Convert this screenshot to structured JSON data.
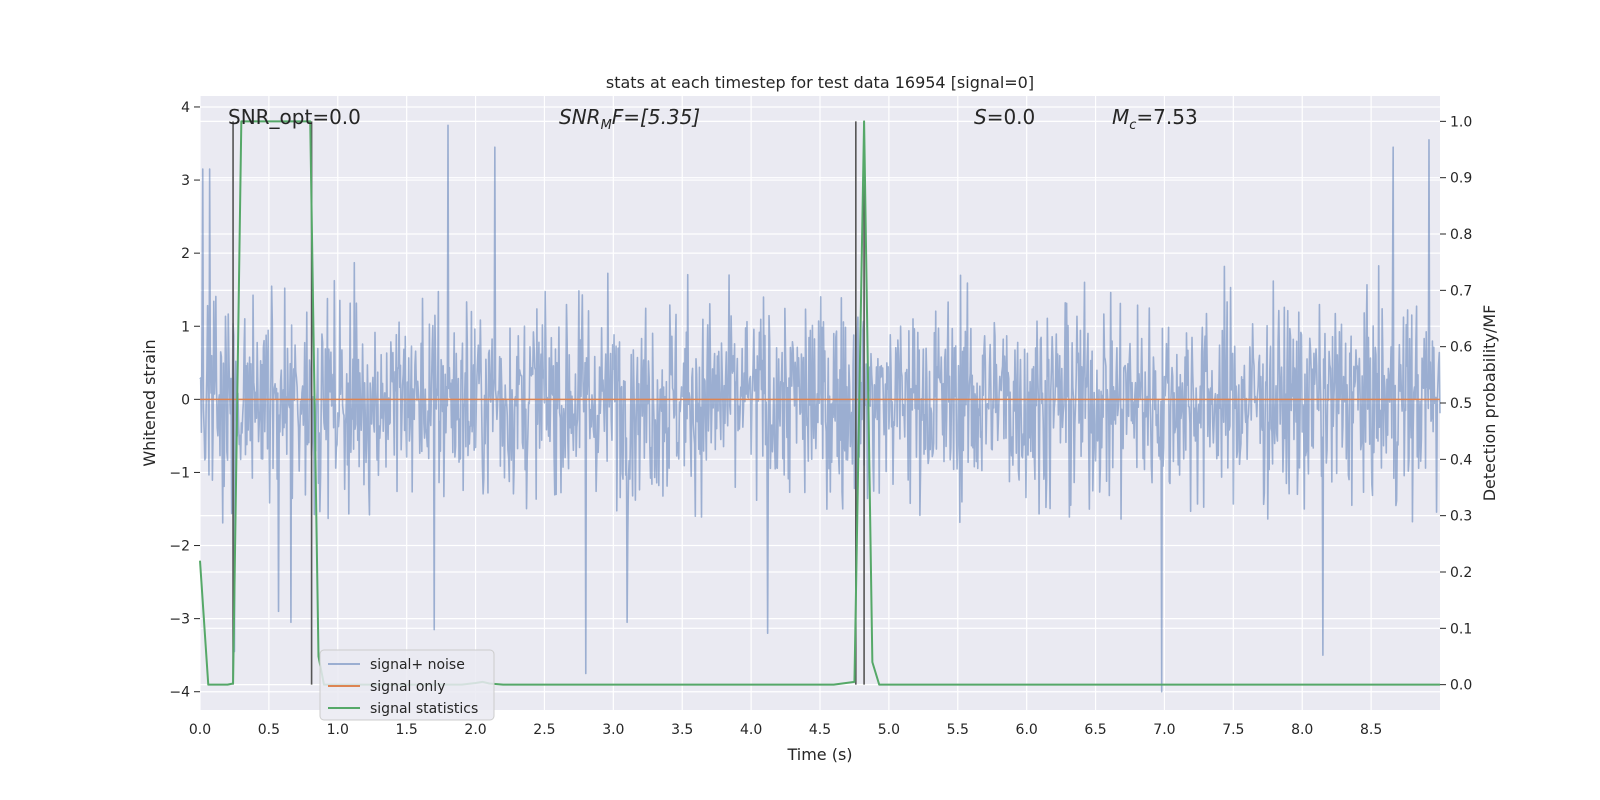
{
  "chart_data": {
    "type": "line",
    "title": "stats at each timestep for test data 16954 [signal=0]",
    "xlabel": "Time (s)",
    "ylabel_left": "Whitened strain",
    "ylabel_right": "Detection probability/MF",
    "xlim": [
      0.0,
      9.0
    ],
    "ylim_left": [
      -4.25,
      4.15
    ],
    "ylim_right": [
      -0.045,
      1.045
    ],
    "xticks": [
      0.0,
      0.5,
      1.0,
      1.5,
      2.0,
      2.5,
      3.0,
      3.5,
      4.0,
      4.5,
      5.0,
      5.5,
      6.0,
      6.5,
      7.0,
      7.5,
      8.0,
      8.5
    ],
    "xtick_labels": [
      "0.0",
      "0.5",
      "1.0",
      "1.5",
      "2.0",
      "2.5",
      "3.0",
      "3.5",
      "4.0",
      "4.5",
      "5.0",
      "5.5",
      "6.0",
      "6.5",
      "7.0",
      "7.5",
      "8.0",
      "8.5"
    ],
    "yticks_left": [
      -4,
      -3,
      -2,
      -1,
      0,
      1,
      2,
      3,
      4
    ],
    "ytick_labels_left": [
      "−4",
      "−3",
      "−2",
      "−1",
      "0",
      "1",
      "2",
      "3",
      "4"
    ],
    "yticks_right": [
      0.0,
      0.1,
      0.2,
      0.3,
      0.4,
      0.5,
      0.6,
      0.7,
      0.8,
      0.9,
      1.0
    ],
    "ytick_labels_right": [
      "0.0",
      "0.1",
      "0.2",
      "0.3",
      "0.4",
      "0.5",
      "0.6",
      "0.7",
      "0.8",
      "0.9",
      "1.0"
    ],
    "grid": true,
    "legend_position": "lower-left",
    "annotations": {
      "snr_opt": "SNR_opt=0.0",
      "snr_mf_var": "SNR",
      "snr_mf_sub": "M",
      "snr_mf_rest": "F=[5.35]",
      "s_var": "S",
      "s_rest": "=0.0",
      "mc_var": "M",
      "mc_sub": "c",
      "mc_rest": "=7.53"
    },
    "series": [
      {
        "name": "signal+ noise",
        "color": "#4c72b0",
        "axis": "left",
        "kind": "noise",
        "sample_rate_hz": 2048,
        "typical_abs_max": 2.4,
        "overall_min": -4.0,
        "overall_max": 3.75,
        "peaks": [
          {
            "x": 0.02,
            "y": 3.15
          },
          {
            "x": 0.07,
            "y": 3.15
          },
          {
            "x": 0.25,
            "y": -3.45
          },
          {
            "x": 0.57,
            "y": -2.9
          },
          {
            "x": 0.66,
            "y": -3.05
          },
          {
            "x": 1.7,
            "y": -3.15
          },
          {
            "x": 1.8,
            "y": 3.75
          },
          {
            "x": 2.14,
            "y": 3.45
          },
          {
            "x": 2.8,
            "y": -3.75
          },
          {
            "x": 3.1,
            "y": -3.05
          },
          {
            "x": 4.12,
            "y": -3.2
          },
          {
            "x": 6.98,
            "y": -4.0
          },
          {
            "x": 8.15,
            "y": -3.5
          },
          {
            "x": 8.66,
            "y": 3.45
          },
          {
            "x": 8.92,
            "y": 3.55
          }
        ]
      },
      {
        "name": "signal only",
        "color": "#dd8452",
        "axis": "left",
        "x": [
          0.0,
          9.0
        ],
        "y": [
          0.0,
          0.0
        ]
      },
      {
        "name": "signal statistics",
        "color": "#55a868",
        "axis": "right",
        "x": [
          0.0,
          0.06,
          0.1,
          0.2,
          0.24,
          0.3,
          0.8,
          0.86,
          0.9,
          1.0,
          1.9,
          2.0,
          2.05,
          2.1,
          2.2,
          3.0,
          4.0,
          4.6,
          4.75,
          4.82,
          4.88,
          4.93,
          5.0,
          6.0,
          7.0,
          8.0,
          9.0
        ],
        "y": [
          0.22,
          0.0,
          0.0,
          0.0,
          0.002,
          1.0,
          1.0,
          0.05,
          0.0,
          0.0,
          0.0,
          0.003,
          0.005,
          0.002,
          0.0,
          0.0,
          0.0,
          0.0,
          0.005,
          1.0,
          0.04,
          0.0,
          0.0,
          0.0,
          0.0,
          0.0,
          0.0
        ]
      }
    ],
    "vertical_lines": [
      0.24,
      0.81,
      4.76,
      4.82
    ]
  }
}
